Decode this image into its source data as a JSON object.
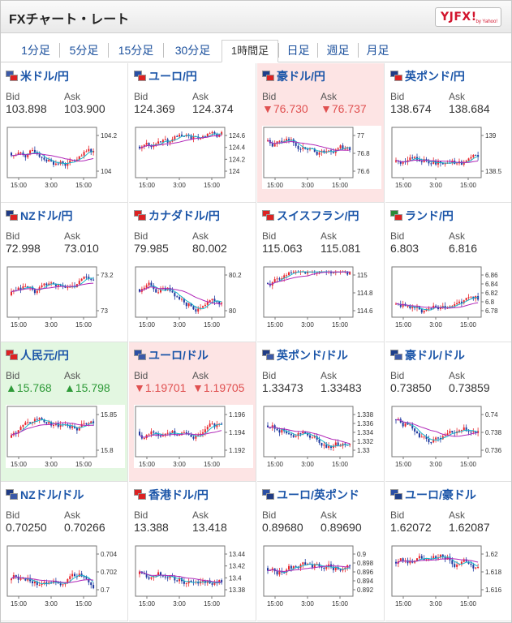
{
  "header": {
    "title": "FXチャート・レート",
    "logo_text": "YJFX!",
    "logo_sub": "by Yahoo!"
  },
  "tabs": [
    {
      "label": "1分足",
      "active": false
    },
    {
      "label": "5分足",
      "active": false
    },
    {
      "label": "15分足",
      "active": false
    },
    {
      "label": "30分足",
      "active": false
    },
    {
      "label": "1時間足",
      "active": true
    },
    {
      "label": "日足",
      "active": false
    },
    {
      "label": "週足",
      "active": false
    },
    {
      "label": "月足",
      "active": false
    }
  ],
  "labels": {
    "bid": "Bid",
    "ask": "Ask"
  },
  "pairs": [
    {
      "name": "米ドル/円",
      "flags": [
        "#3c5aa8",
        "#d22"
      ],
      "state": "normal",
      "bid": "103.898",
      "ask": "103.900",
      "chart": {
        "yticks": [
          "104.2",
          "104"
        ],
        "xticks": [
          "15:00",
          "3:00",
          "15:00"
        ],
        "ylim": [
          103.8,
          104.4
        ]
      }
    },
    {
      "name": "ユーロ/円",
      "flags": [
        "#2a4fa5",
        "#d22"
      ],
      "state": "normal",
      "bid": "124.369",
      "ask": "124.374",
      "chart": {
        "yticks": [
          "124.6",
          "124.4",
          "124.2",
          "124"
        ],
        "xticks": [
          "15:00",
          "3:00",
          "15:00"
        ],
        "ylim": [
          123.9,
          124.7
        ]
      }
    },
    {
      "name": "豪ドル/円",
      "flags": [
        "#1e3f8a",
        "#d22"
      ],
      "state": "down",
      "bid": "▼76.730",
      "ask": "▼76.737",
      "chart": {
        "yticks": [
          "77",
          "76.8",
          "76.6"
        ],
        "xticks": [
          "15:00",
          "3:00",
          "15:00"
        ],
        "ylim": [
          76.5,
          77.1
        ]
      }
    },
    {
      "name": "英ポンド/円",
      "flags": [
        "#203c85",
        "#d22"
      ],
      "state": "normal",
      "bid": "138.674",
      "ask": "138.684",
      "chart": {
        "yticks": [
          "139",
          "138.5"
        ],
        "xticks": [
          "15:00",
          "3:00",
          "15:00"
        ],
        "ylim": [
          138.2,
          139.3
        ]
      }
    },
    {
      "name": "NZドル/円",
      "flags": [
        "#1f3b85",
        "#d22"
      ],
      "state": "normal",
      "bid": "72.998",
      "ask": "73.010",
      "chart": {
        "yticks": [
          "73.2",
          "73"
        ],
        "xticks": [
          "15:00",
          "3:00",
          "15:00"
        ],
        "ylim": [
          72.85,
          73.35
        ]
      }
    },
    {
      "name": "カナダドル/円",
      "flags": [
        "#d22",
        "#d22"
      ],
      "state": "normal",
      "bid": "79.985",
      "ask": "80.002",
      "chart": {
        "yticks": [
          "80.2",
          "80"
        ],
        "xticks": [
          "15:00",
          "3:00",
          "15:00"
        ],
        "ylim": [
          79.8,
          80.3
        ]
      }
    },
    {
      "name": "スイスフラン/円",
      "flags": [
        "#d22",
        "#d22"
      ],
      "state": "normal",
      "bid": "115.063",
      "ask": "115.081",
      "chart": {
        "yticks": [
          "115",
          "114.8",
          "114.6"
        ],
        "xticks": [
          "15:00",
          "3:00",
          "15:00"
        ],
        "ylim": [
          114.5,
          115.2
        ]
      }
    },
    {
      "name": "ランド/円",
      "flags": [
        "#2a8a3a",
        "#d22"
      ],
      "state": "normal",
      "bid": "6.803",
      "ask": "6.816",
      "chart": {
        "yticks": [
          "6.86",
          "6.84",
          "6.82",
          "6.8",
          "6.78"
        ],
        "xticks": [
          "15:00",
          "3:00",
          "15:00"
        ],
        "ylim": [
          6.77,
          6.87
        ]
      }
    },
    {
      "name": "人民元/円",
      "flags": [
        "#d22",
        "#d22"
      ],
      "state": "up",
      "bid": "▲15.768",
      "ask": "▲15.798",
      "chart": {
        "yticks": [
          "15.85",
          "15.8"
        ],
        "xticks": [
          "15:00",
          "3:00",
          "15:00"
        ],
        "ylim": [
          15.76,
          15.87
        ]
      }
    },
    {
      "name": "ユーロ/ドル",
      "flags": [
        "#2a4fa5",
        "#3c5aa8"
      ],
      "state": "down",
      "bid": "▼1.19701",
      "ask": "▼1.19705",
      "chart": {
        "yticks": [
          "1.196",
          "1.194",
          "1.192"
        ],
        "xticks": [
          "15:00",
          "3:00",
          "15:00"
        ],
        "ylim": [
          1.1905,
          1.1975
        ]
      }
    },
    {
      "name": "英ポンド/ドル",
      "flags": [
        "#203c85",
        "#3c5aa8"
      ],
      "state": "normal",
      "bid": "1.33473",
      "ask": "1.33483",
      "chart": {
        "yticks": [
          "1.338",
          "1.336",
          "1.334",
          "1.332",
          "1.33"
        ],
        "xticks": [
          "15:00",
          "3:00",
          "15:00"
        ],
        "ylim": [
          1.329,
          1.339
        ]
      }
    },
    {
      "name": "豪ドル/ドル",
      "flags": [
        "#1e3f8a",
        "#3c5aa8"
      ],
      "state": "normal",
      "bid": "0.73850",
      "ask": "0.73859",
      "chart": {
        "yticks": [
          "0.74",
          "0.738",
          "0.736"
        ],
        "xticks": [
          "15:00",
          "3:00",
          "15:00"
        ],
        "ylim": [
          0.7352,
          0.7408
        ]
      }
    },
    {
      "name": "NZドル/ドル",
      "flags": [
        "#1f3b85",
        "#3c5aa8"
      ],
      "state": "normal",
      "bid": "0.70250",
      "ask": "0.70266",
      "chart": {
        "yticks": [
          "0.704",
          "0.702",
          "0.7"
        ],
        "xticks": [
          "15:00",
          "3:00",
          "15:00"
        ],
        "ylim": [
          0.6995,
          0.7048
        ]
      }
    },
    {
      "name": "香港ドル/円",
      "flags": [
        "#d22",
        "#d22"
      ],
      "state": "normal",
      "bid": "13.388",
      "ask": "13.418",
      "chart": {
        "yticks": [
          "13.44",
          "13.42",
          "13.4",
          "13.38"
        ],
        "xticks": [
          "15:00",
          "3:00",
          "15:00"
        ],
        "ylim": [
          13.375,
          13.445
        ]
      }
    },
    {
      "name": "ユーロ/英ポンド",
      "flags": [
        "#2a4fa5",
        "#203c85"
      ],
      "state": "normal",
      "bid": "0.89680",
      "ask": "0.89690",
      "chart": {
        "yticks": [
          "0.9",
          "0.898",
          "0.896",
          "0.894",
          "0.892"
        ],
        "xticks": [
          "15:00",
          "3:00",
          "15:00"
        ],
        "ylim": [
          0.891,
          0.9005
        ]
      }
    },
    {
      "name": "ユーロ/豪ドル",
      "flags": [
        "#2a4fa5",
        "#1e3f8a"
      ],
      "state": "normal",
      "bid": "1.62072",
      "ask": "1.62087",
      "chart": {
        "yticks": [
          "1.62",
          "1.618",
          "1.616"
        ],
        "xticks": [
          "15:00",
          "3:00",
          "15:00"
        ],
        "ylim": [
          1.615,
          1.6215
        ]
      }
    }
  ],
  "colors": {
    "candle_up": "#e8262d",
    "candle_down": "#1f3aa0",
    "ma_short": "#19b6c9",
    "ma_long": "#b026b8",
    "link": "#1b55a8"
  }
}
